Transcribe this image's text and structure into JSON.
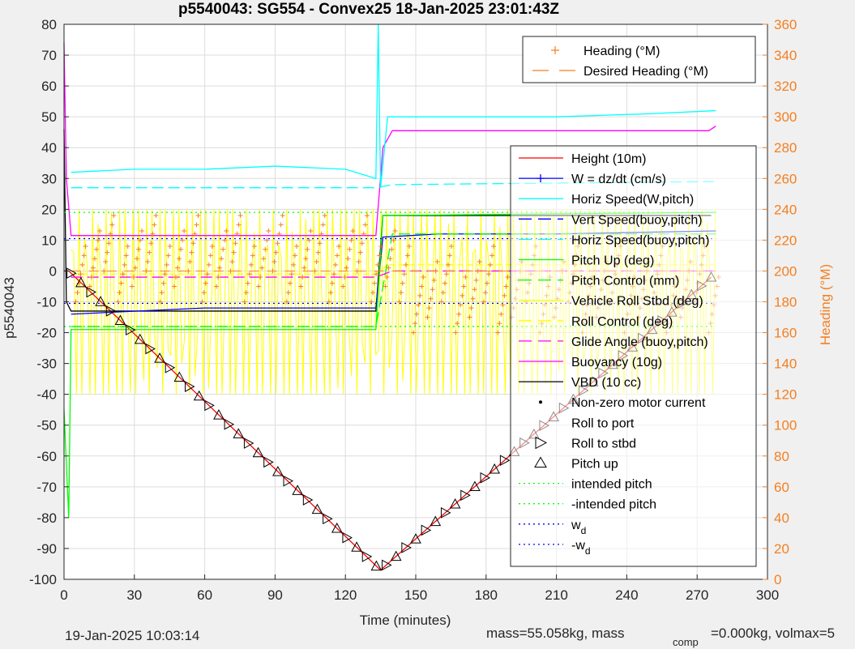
{
  "figure": {
    "title": "p5540043: SG554 - Convex25 18-Jan-2025 23:01:43Z",
    "xlabel": "Time (minutes)",
    "ylabel_left": "p5540043",
    "ylabel_right": "Heading (°M)",
    "footer_left": "19-Jan-2025 10:03:14",
    "footer_mass": "mass=55.058kg, mass",
    "footer_comp": "comp",
    "footer_rest": "=0.000kg, volmax=5"
  },
  "chart_data": {
    "type": "line",
    "xlim": [
      0,
      300
    ],
    "ylim": [
      -100,
      80
    ],
    "ylim_right": [
      0,
      360
    ],
    "grid": true,
    "x_ticks": [
      "0",
      "30",
      "60",
      "90",
      "120",
      "150",
      "180",
      "210",
      "240",
      "270",
      "300"
    ],
    "y_ticks": [
      "80",
      "70",
      "60",
      "50",
      "40",
      "30",
      "20",
      "10",
      "0",
      "-10",
      "-20",
      "-30",
      "-40",
      "-50",
      "-60",
      "-70",
      "-80",
      "-90",
      "-100"
    ],
    "y_ticks_right": [
      "360",
      "340",
      "320",
      "300",
      "280",
      "260",
      "240",
      "220",
      "200",
      "180",
      "160",
      "140",
      "120",
      "100",
      "80",
      "60",
      "40",
      "20",
      "0"
    ],
    "legend_right_axis": {
      "position": "top-right",
      "entries": [
        {
          "label": "Heading (°M)",
          "color": "#f57f20",
          "style": "plus"
        },
        {
          "label": "Desired Heading (°M)",
          "color": "#f57f20",
          "style": "dash"
        }
      ]
    },
    "legend_left_axis": {
      "position": "right",
      "entries": [
        {
          "label": "Height (10m)",
          "color": "#ff0000",
          "style": "line"
        },
        {
          "label": "W = dz/dt (cm/s)",
          "color": "#0000ff",
          "style": "line-plus"
        },
        {
          "label": "Horiz Speed(W,pitch)",
          "color": "#00ffff",
          "style": "line"
        },
        {
          "label": "Vert Speed(buoy,pitch)",
          "color": "#0000ff",
          "style": "dash"
        },
        {
          "label": "Horiz Speed(buoy,pitch)",
          "color": "#00ffff",
          "style": "dash"
        },
        {
          "label": "Pitch Up (deg)",
          "color": "#00ff00",
          "style": "line"
        },
        {
          "label": "Pitch Control (mm)",
          "color": "#00ff00",
          "style": "dash"
        },
        {
          "label": "Vehicle Roll Stbd (deg)",
          "color": "#ffff00",
          "style": "line"
        },
        {
          "label": "Roll Control (deg)",
          "color": "#ffff00",
          "style": "dash"
        },
        {
          "label": "Glide Angle (buoy,pitch)",
          "color": "#ff00ff",
          "style": "dash"
        },
        {
          "label": "Buoyancy (10g)",
          "color": "#ff00ff",
          "style": "line"
        },
        {
          "label": "VBD (10 cc)",
          "color": "#000000",
          "style": "line"
        },
        {
          "label": "Non-zero motor current",
          "color": "#000000",
          "style": "dot"
        },
        {
          "label": "Roll to port",
          "color": "#000000",
          "style": "tri-left"
        },
        {
          "label": "Roll to stbd",
          "color": "#000000",
          "style": "tri-right"
        },
        {
          "label": "Pitch up",
          "color": "#000000",
          "style": "tri-up"
        },
        {
          "label": "intended pitch",
          "color": "#00ff00",
          "style": "dot-line"
        },
        {
          "label": "-intended pitch",
          "color": "#00ff00",
          "style": "dot-line"
        },
        {
          "label": "w",
          "sub": "d",
          "color": "#0000ff",
          "style": "dot-line"
        },
        {
          "label": "-w",
          "sub": "d",
          "color": "#0000ff",
          "style": "dot-line"
        }
      ]
    },
    "series": [
      {
        "name": "Height (10m)",
        "color": "#ff0000",
        "x": [
          0,
          2,
          135,
          276
        ],
        "y": [
          0,
          0,
          -97,
          -2
        ]
      },
      {
        "name": "VBD (10 cc)",
        "color": "#000000",
        "x": [
          0,
          1,
          3,
          133,
          136,
          276
        ],
        "y": [
          46,
          -10,
          -13,
          -13,
          18,
          18
        ]
      },
      {
        "name": "Buoyancy (10g)",
        "color": "#ff00ff",
        "x": [
          0,
          1,
          3,
          133,
          136,
          140,
          275,
          278
        ],
        "y": [
          74,
          30,
          11.5,
          11.5,
          40,
          45.5,
          45.5,
          47
        ]
      },
      {
        "name": "Horiz Speed(W,pitch)",
        "color": "#00ffff",
        "x": [
          3,
          30,
          60,
          90,
          120,
          133,
          134,
          135,
          138,
          170,
          210,
          250,
          278
        ],
        "y": [
          32,
          33,
          33,
          34,
          33,
          30,
          80,
          27,
          50,
          50,
          50,
          51,
          52
        ]
      },
      {
        "name": "Horiz Speed(buoy,pitch)",
        "color": "#00ffff",
        "x": [
          3,
          133,
          140,
          278
        ],
        "y": [
          27,
          27,
          28,
          29
        ]
      },
      {
        "name": "W = dz/dt (cm/s)",
        "color": "#0000ff",
        "x": [
          3,
          60,
          133,
          136,
          160,
          210,
          278
        ],
        "y": [
          -14,
          -12,
          -12,
          11,
          12,
          12,
          13
        ]
      },
      {
        "name": "Pitch Up (deg)",
        "color": "#00ff00",
        "x": [
          0,
          2,
          3,
          133,
          136,
          278
        ],
        "y": [
          -45,
          -80,
          -19,
          -19,
          18,
          19
        ]
      },
      {
        "name": "Pitch Control (mm)",
        "color": "#00ff00",
        "x": [
          3,
          133,
          140,
          278
        ],
        "y": [
          -18,
          -18,
          12,
          12
        ]
      },
      {
        "name": "Glide Angle (buoy,pitch)",
        "color": "#ff00ff",
        "x": [
          3,
          133,
          140,
          278
        ],
        "y": [
          -2,
          -2,
          0,
          0
        ]
      },
      {
        "name": "intended pitch",
        "color": "#00ff00",
        "x": [
          0,
          278
        ],
        "y": [
          19,
          19
        ]
      },
      {
        "name": "-intended pitch",
        "color": "#00ff00",
        "x": [
          0,
          278
        ],
        "y": [
          -18,
          -18
        ]
      },
      {
        "name": "w",
        "color": "#0000ff",
        "x": [
          0,
          278
        ],
        "y": [
          10.5,
          10.5
        ]
      },
      {
        "name": "-w",
        "color": "#0000ff",
        "x": [
          0,
          278
        ],
        "y": [
          -10.5,
          -10.5
        ]
      }
    ],
    "roll_range": [
      -40,
      20
    ],
    "heading_range_deg": [
      160,
      240
    ],
    "marker_track": {
      "x": [
        2,
        135,
        276
      ],
      "y": [
        0,
        -97,
        -2
      ]
    }
  }
}
